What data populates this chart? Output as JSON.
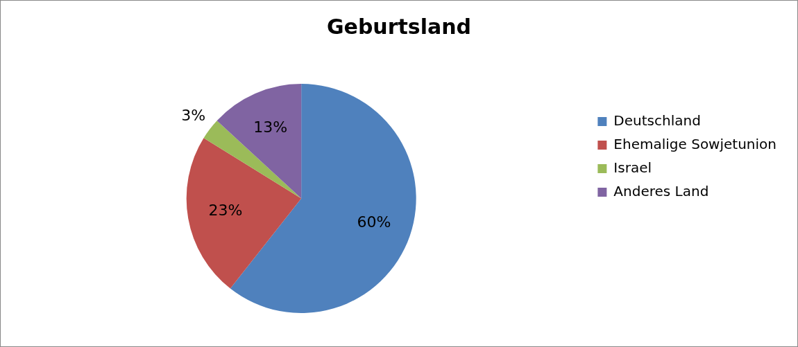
{
  "chart_data": {
    "type": "pie",
    "title": "Geburtsland",
    "categories": [
      "Deutschland",
      "Ehemalige Sowjetunion",
      "Israel",
      "Anderes Land"
    ],
    "values": [
      60,
      23,
      3,
      13
    ],
    "value_labels": [
      "60%",
      "23%",
      "3%",
      "13%"
    ],
    "colors": [
      "#4f81bd",
      "#c0504d",
      "#9bbb59",
      "#8064a2"
    ],
    "legend": "right"
  }
}
